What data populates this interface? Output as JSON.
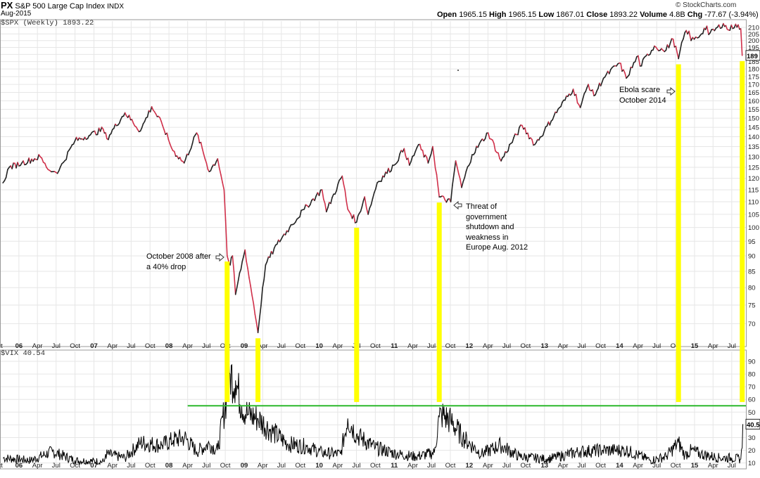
{
  "header": {
    "symbol": "PX",
    "name": "S&P 500 Large Cap Index",
    "exchange": "INDX",
    "date": "Aug-2015",
    "quote": {
      "open_label": "Open",
      "open": "1965.15",
      "high_label": "High",
      "high": "1965.15",
      "low_label": "Low",
      "low": "1867.01",
      "close_label": "Close",
      "close": "1893.22",
      "volume_label": "Volume",
      "volume": "4.8B",
      "chg_label": "Chg",
      "chg": "-77.67 (-3.94%)"
    },
    "watermark": "© StockCharts.com",
    "down_arrow_icon": "triangle-down-icon"
  },
  "colors": {
    "price_up": "#222222",
    "price_down": "#d0304a",
    "highlight": "#ffff00",
    "reference_line": "#2db82d",
    "grid": "#e6e6e6",
    "arrow": "#333333"
  },
  "chart_data": [
    {
      "type": "line",
      "panel_label": "$SPX (Weekly) 1893.22",
      "last_value_label": "189",
      "x_tick_labels": [
        "ct",
        "06",
        "Apr",
        "Jul",
        "Oct",
        "07",
        "Apr",
        "Jul",
        "Oct",
        "08",
        "Apr",
        "Jul",
        "Oct",
        "09",
        "Apr",
        "Jul",
        "Oct",
        "10",
        "Apr",
        "Jul",
        "Oct",
        "11",
        "Apr",
        "Jul",
        "Oct",
        "12",
        "Apr",
        "Jul",
        "Oct",
        "13",
        "Apr",
        "Jul",
        "Oct",
        "14",
        "Apr",
        "Jul",
        "Oct",
        "15",
        "Apr",
        "Jul"
      ],
      "y_scale": "log",
      "y_tick_values": [
        700,
        750,
        800,
        850,
        900,
        950,
        1000,
        1050,
        1100,
        1150,
        1200,
        1250,
        1300,
        1350,
        1400,
        1450,
        1500,
        1550,
        1600,
        1650,
        1700,
        1750,
        1800,
        1850,
        1900,
        1950,
        2000,
        2050,
        2100
      ],
      "y_tick_labels": [
        "70",
        "75",
        "80",
        "85",
        "90",
        "95",
        "100",
        "105",
        "110",
        "115",
        "120",
        "125",
        "130",
        "135",
        "140",
        "145",
        "150",
        "155",
        "160",
        "165",
        "170",
        "175",
        "180",
        "185",
        "",
        "195",
        "200",
        "205",
        "210"
      ],
      "ylim": [
        660,
        2150
      ],
      "series": [
        {
          "x": [
            "2005-10-15",
            "2005-11-15",
            "2006-01-15",
            "2006-04-15",
            "2006-05-15",
            "2006-06-15",
            "2006-07-15",
            "2006-10-01",
            "2006-12-15",
            "2007-02-15",
            "2007-03-05",
            "2007-06-01",
            "2007-08-15",
            "2007-10-09",
            "2007-12-01",
            "2008-01-20",
            "2008-03-15",
            "2008-05-15",
            "2008-07-15",
            "2008-08-25",
            "2008-09-25",
            "2008-10-10",
            "2008-10-25",
            "2008-11-05",
            "2008-11-20",
            "2009-01-05",
            "2009-01-25",
            "2009-03-09",
            "2009-04-15",
            "2009-06-10",
            "2009-08-10",
            "2009-10-20",
            "2010-01-15",
            "2010-02-05",
            "2010-04-23",
            "2010-05-20",
            "2010-07-02",
            "2010-08-10",
            "2010-08-27",
            "2010-10-10",
            "2010-12-31",
            "2011-02-18",
            "2011-03-16",
            "2011-04-29",
            "2011-06-15",
            "2011-07-07",
            "2011-08-08",
            "2011-10-03",
            "2011-10-27",
            "2011-11-25",
            "2012-01-15",
            "2012-04-02",
            "2012-06-04",
            "2012-09-14",
            "2012-11-15",
            "2012-12-31",
            "2013-03-15",
            "2013-05-21",
            "2013-06-24",
            "2013-08-02",
            "2013-08-30",
            "2013-10-15",
            "2013-12-31",
            "2014-02-03",
            "2014-04-02",
            "2014-04-11",
            "2014-06-20",
            "2014-07-31",
            "2014-08-08",
            "2014-09-19",
            "2014-10-15",
            "2014-11-15",
            "2014-12-05",
            "2014-12-15",
            "2015-01-15",
            "2015-03-02",
            "2015-03-11",
            "2015-05-21",
            "2015-06-15",
            "2015-07-20",
            "2015-08-14",
            "2015-08-21"
          ],
          "y": [
            1180,
            1250,
            1270,
            1300,
            1250,
            1230,
            1235,
            1380,
            1410,
            1440,
            1390,
            1530,
            1430,
            1565,
            1460,
            1330,
            1270,
            1420,
            1230,
            1290,
            1150,
            900,
            870,
            900,
            780,
            920,
            830,
            677,
            870,
            940,
            1000,
            1070,
            1150,
            1060,
            1210,
            1070,
            1020,
            1120,
            1050,
            1180,
            1260,
            1340,
            1260,
            1360,
            1270,
            1350,
            1120,
            1100,
            1280,
            1160,
            1310,
            1420,
            1280,
            1460,
            1360,
            1430,
            1560,
            1670,
            1560,
            1700,
            1630,
            1740,
            1840,
            1740,
            1890,
            1820,
            1960,
            1930,
            1920,
            2010,
            1870,
            2060,
            2070,
            2000,
            2020,
            2110,
            2045,
            2130,
            2080,
            2125,
            2090,
            1893
          ]
        }
      ]
    },
    {
      "type": "line",
      "panel_label": "$VIX 40.54",
      "last_value_label": "40.5",
      "x_tick_labels": [
        "ct",
        "06",
        "Apr",
        "Jul",
        "Oct",
        "07",
        "Apr",
        "Jul",
        "Oct",
        "08",
        "Apr",
        "Jul",
        "Oct",
        "09",
        "Apr",
        "Jul",
        "Oct",
        "10",
        "Apr",
        "Jul",
        "Oct",
        "11",
        "Apr",
        "Jul",
        "Oct",
        "12",
        "Apr",
        "Jul",
        "Oct",
        "13",
        "Apr",
        "Jul",
        "Oct",
        "14",
        "Apr",
        "Jul",
        "Oct",
        "15",
        "Apr",
        "Jul"
      ],
      "y_tick_values": [
        10,
        20,
        30,
        40,
        50,
        60,
        70,
        80,
        90
      ],
      "y_tick_labels": [
        "10",
        "20",
        "30",
        "",
        "50",
        "60",
        "70",
        "80",
        "90"
      ],
      "ylim": [
        7,
        95
      ],
      "reference_line_value": 55,
      "series": [
        {
          "x": [
            "2005-10-15",
            "2006-03-01",
            "2006-06-13",
            "2006-10-01",
            "2007-02-20",
            "2007-02-27",
            "2007-06-01",
            "2007-08-16",
            "2007-11-26",
            "2008-01-22",
            "2008-03-17",
            "2008-05-15",
            "2008-07-15",
            "2008-08-25",
            "2008-10-10",
            "2008-10-24",
            "2008-11-20",
            "2008-12-20",
            "2009-01-20",
            "2009-03-09",
            "2009-05-15",
            "2009-08-01",
            "2009-11-01",
            "2010-01-15",
            "2010-04-15",
            "2010-05-20",
            "2010-07-01",
            "2010-10-01",
            "2011-01-15",
            "2011-04-15",
            "2011-07-15",
            "2011-08-08",
            "2011-08-19",
            "2011-10-03",
            "2011-12-01",
            "2012-03-01",
            "2012-06-01",
            "2012-09-01",
            "2013-01-15",
            "2013-06-24",
            "2013-10-09",
            "2014-02-03",
            "2014-06-01",
            "2014-08-15",
            "2014-10-15",
            "2014-11-15",
            "2014-12-16",
            "2015-02-01",
            "2015-05-01",
            "2015-07-01",
            "2015-08-14",
            "2015-08-21",
            "2015-08-24"
          ],
          "y": [
            14,
            12,
            19,
            12,
            11,
            17,
            14,
            26,
            24,
            28,
            30,
            19,
            25,
            20,
            65,
            80,
            75,
            55,
            48,
            45,
            35,
            25,
            23,
            18,
            17,
            45,
            32,
            22,
            17,
            15,
            18,
            46,
            48,
            43,
            30,
            17,
            24,
            15,
            13,
            19,
            20,
            20,
            12,
            15,
            26,
            16,
            20,
            17,
            14,
            14,
            13,
            22,
            40.54
          ]
        }
      ]
    }
  ],
  "annotations": [
    {
      "text": "October 2008 after\na 40% drop"
    },
    {
      "text": "Threat of\ngovernment\nshutdown and\nweakness in\nEurope Aug. 2012"
    },
    {
      "text": "Ebola scare\nOctober 2014"
    }
  ],
  "highlight_markers": [
    {
      "date": "2008-10-10"
    },
    {
      "date": "2009-03-09"
    },
    {
      "date": "2010-07-02"
    },
    {
      "date": "2011-08-08"
    },
    {
      "date": "2014-10-15"
    },
    {
      "date": "2015-08-21"
    }
  ]
}
